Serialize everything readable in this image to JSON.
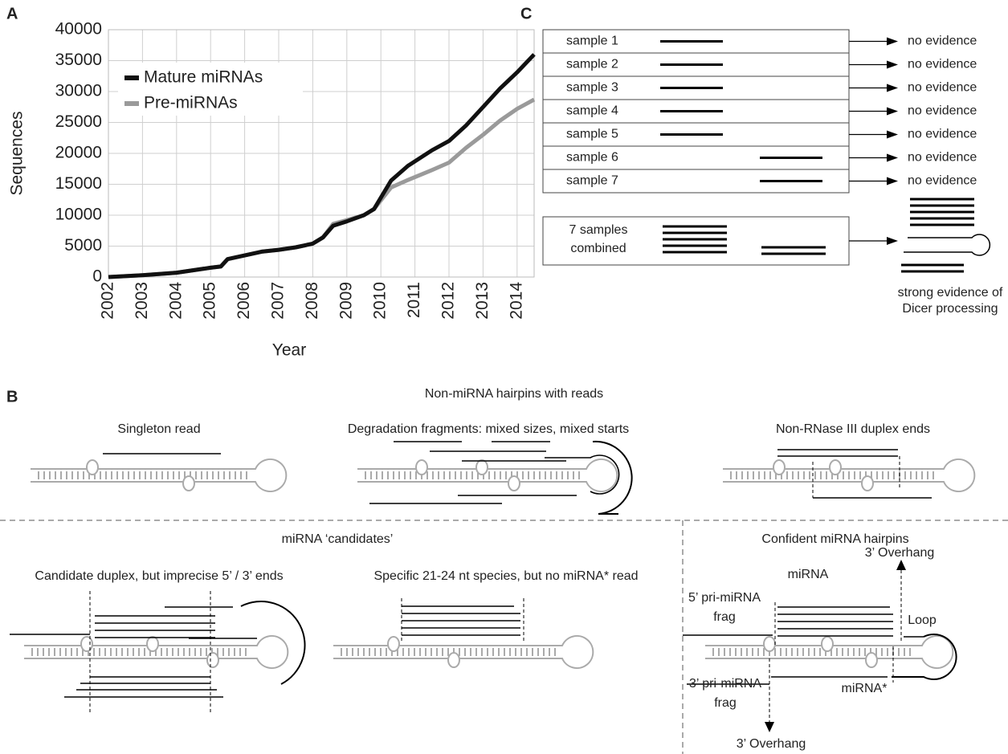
{
  "labels": {
    "a": "A",
    "b": "B",
    "c": "C"
  },
  "chart_data": {
    "type": "line",
    "x": [
      2002,
      2003,
      2004,
      2005,
      2005.3,
      2005.5,
      2006,
      2006.5,
      2007,
      2007.5,
      2008,
      2008.3,
      2008.6,
      2009,
      2009.5,
      2009.8,
      2010.3,
      2010.8,
      2011.5,
      2012,
      2012.5,
      2013,
      2013.5,
      2014,
      2014.5
    ],
    "series": [
      {
        "name": "Mature miRNAs",
        "color": "#111111",
        "values": [
          0,
          300,
          700,
          1500,
          1700,
          2900,
          3500,
          4100,
          4400,
          4800,
          5400,
          6400,
          8300,
          9000,
          10000,
          11000,
          15600,
          18000,
          20500,
          22000,
          24500,
          27500,
          30500,
          33100,
          36000
        ]
      },
      {
        "name": "Pre-miRNAs",
        "color": "#9a9a9a",
        "values": [
          0,
          300,
          700,
          1500,
          1700,
          2900,
          3500,
          4100,
          4400,
          4800,
          5400,
          6400,
          8600,
          9200,
          10000,
          11000,
          14500,
          15700,
          17300,
          18500,
          20900,
          23000,
          25300,
          27200,
          28700
        ]
      }
    ],
    "xlabel": "Year",
    "ylabel": "Sequences",
    "xlim": [
      2002,
      2014.5
    ],
    "xticks": [
      2002,
      2003,
      2004,
      2005,
      2006,
      2007,
      2008,
      2009,
      2010,
      2011,
      2012,
      2013,
      2014
    ],
    "ylim": [
      0,
      40000
    ],
    "yticks": [
      0,
      5000,
      10000,
      15000,
      20000,
      25000,
      30000,
      35000,
      40000
    ],
    "grid": true,
    "legend": "upper left"
  },
  "panel_c": {
    "samples": [
      {
        "name": "sample 1",
        "result": "no evidence"
      },
      {
        "name": "sample 2",
        "result": "no evidence"
      },
      {
        "name": "sample 3",
        "result": "no evidence"
      },
      {
        "name": "sample 4",
        "result": "no evidence"
      },
      {
        "name": "sample 5",
        "result": "no evidence"
      },
      {
        "name": "sample 6",
        "result": "no evidence"
      },
      {
        "name": "sample 7",
        "result": "no evidence"
      }
    ],
    "combined": {
      "name": [
        "7 samples",
        "combined"
      ],
      "result": [
        "strong evidence of",
        "Dicer processing"
      ]
    }
  },
  "panel_b": {
    "heading": "Non-miRNA hairpins with reads",
    "non_mirna": [
      "Singleton read",
      "Degradation fragments: mixed sizes, mixed starts",
      "Non-RNase III duplex ends"
    ],
    "candidates": {
      "heading": "miRNA ‘candidates’",
      "items": [
        "Candidate duplex, but imprecise 5’ / 3’ ends",
        "Specific 21-24 nt species, but no miRNA* read"
      ]
    },
    "confident": {
      "heading": "Confident miRNA hairpins",
      "overhang_top": "3’ Overhang",
      "mirna": "miRNA",
      "pri5": [
        "5’ pri-miRNA",
        "frag"
      ],
      "loop": "Loop",
      "pri3": [
        "3’ pri-miRNA",
        "frag"
      ],
      "mirna_star": "miRNA*",
      "overhang_bottom": "3’ Overhang"
    }
  }
}
